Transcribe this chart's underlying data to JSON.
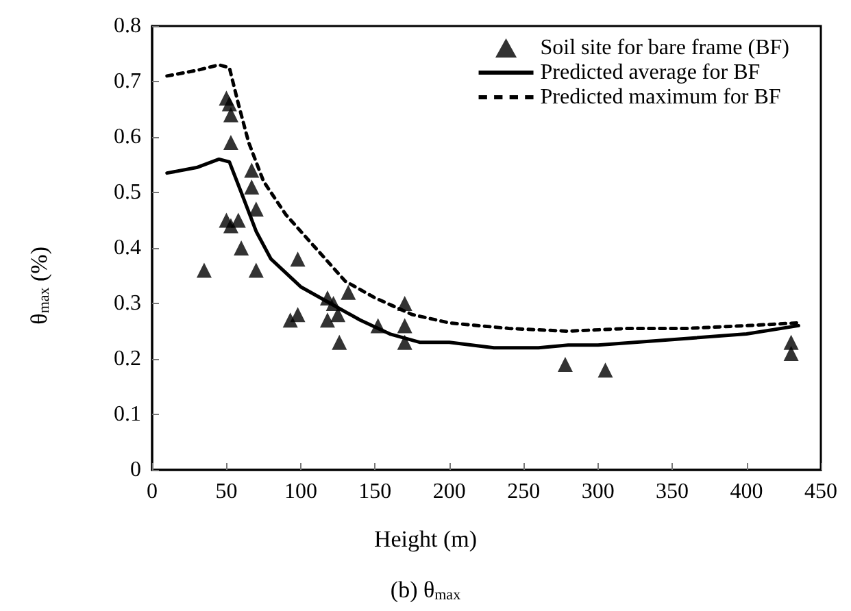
{
  "chart_data": {
    "type": "scatter",
    "xlabel": "Height (m)",
    "ylabel": "θ$_{max}$ (%)",
    "annotations": [
      "(b) θ$_{max}$"
    ],
    "xlim": [
      0,
      450
    ],
    "xticks": [
      0,
      50,
      100,
      150,
      200,
      250,
      300,
      350,
      400,
      450
    ],
    "ylim": [
      0,
      0.8
    ],
    "yticks": [
      0,
      0.1,
      0.2,
      0.3,
      0.4,
      0.5,
      0.6,
      0.7,
      0.8
    ],
    "grid": false,
    "legend": "top right",
    "series": [
      {
        "name": "Soil site for bare frame (BF)",
        "type": "scatter",
        "marker": "triangle",
        "color": "#000000",
        "x": [
          35,
          50,
          52,
          53,
          53,
          50,
          53,
          58,
          60,
          67,
          67,
          70,
          70,
          93,
          98,
          98,
          118,
          118,
          122,
          125,
          126,
          132,
          152,
          170,
          170,
          170,
          278,
          305,
          430,
          430
        ],
        "values": [
          0.36,
          0.67,
          0.66,
          0.64,
          0.59,
          0.45,
          0.44,
          0.45,
          0.4,
          0.54,
          0.51,
          0.47,
          0.36,
          0.27,
          0.28,
          0.38,
          0.27,
          0.31,
          0.3,
          0.28,
          0.23,
          0.32,
          0.26,
          0.3,
          0.26,
          0.23,
          0.19,
          0.18,
          0.23,
          0.21
        ]
      },
      {
        "name": "Predicted average for BF",
        "type": "line",
        "marker": "none",
        "line_style": "solid",
        "color": "#000000",
        "x": [
          10,
          30,
          45,
          52,
          60,
          70,
          80,
          100,
          120,
          140,
          160,
          180,
          200,
          230,
          260,
          280,
          300,
          350,
          400,
          435
        ],
        "values": [
          0.535,
          0.545,
          0.56,
          0.555,
          0.5,
          0.43,
          0.38,
          0.33,
          0.3,
          0.27,
          0.245,
          0.23,
          0.23,
          0.22,
          0.22,
          0.225,
          0.225,
          0.235,
          0.245,
          0.26
        ]
      },
      {
        "name": "Predicted maximum for BF",
        "type": "line",
        "marker": "none",
        "line_style": "dashed",
        "color": "#000000",
        "x": [
          10,
          30,
          45,
          52,
          58,
          65,
          75,
          90,
          110,
          130,
          150,
          175,
          200,
          240,
          280,
          320,
          360,
          400,
          435
        ],
        "values": [
          0.71,
          0.72,
          0.73,
          0.725,
          0.66,
          0.59,
          0.52,
          0.46,
          0.4,
          0.34,
          0.31,
          0.28,
          0.265,
          0.255,
          0.25,
          0.255,
          0.255,
          0.26,
          0.265
        ]
      }
    ]
  }
}
